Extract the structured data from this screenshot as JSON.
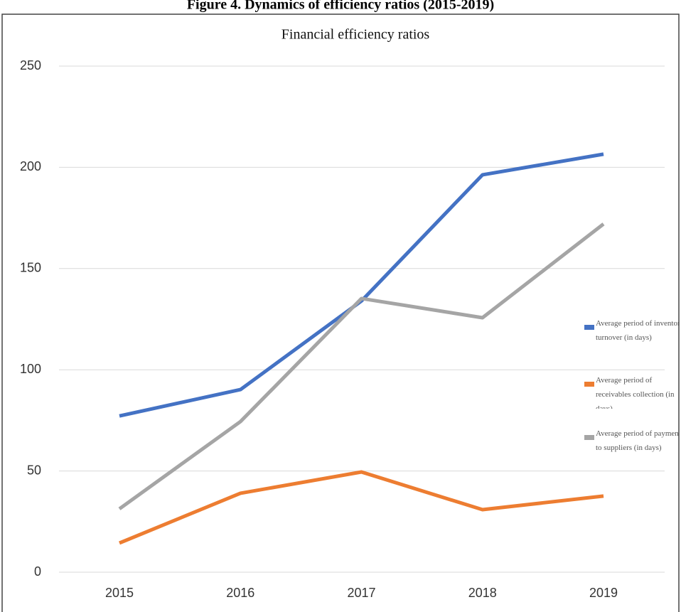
{
  "figure_title": "Figure 4. Dynamics of efficiency ratios (2015-2019)",
  "chart_data": {
    "type": "line",
    "title": "Financial efficiency ratios",
    "categories": [
      "2015",
      "2016",
      "2017",
      "2018",
      "2019"
    ],
    "series": [
      {
        "name": "Average period of inventory turnover (in days)",
        "color": "#4472c4",
        "values": [
          77.2,
          90.2,
          134,
          196.3,
          206.5
        ]
      },
      {
        "name": "Average period of receivables collection (in days)",
        "color": "#ed7d31",
        "values": [
          14.4,
          39,
          49.5,
          30.9,
          37.6
        ]
      },
      {
        "name": "Average period of payment to suppliers (in days)",
        "color": "#a5a5a5",
        "values": [
          31.3,
          74.4,
          135.2,
          125.7,
          172
        ]
      }
    ],
    "ylim": [
      0,
      250
    ],
    "yticks": [
      0,
      50,
      100,
      150,
      200,
      250
    ],
    "grid": true,
    "legend": "right"
  }
}
